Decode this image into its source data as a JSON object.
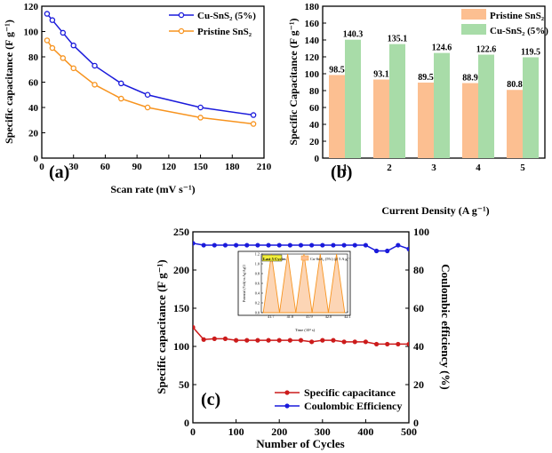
{
  "chart_data": [
    {
      "type": "line",
      "panel_label": "(a)",
      "xlabel": "Scan rate (mV s⁻¹)",
      "ylabel": "Specific capacitance (F g⁻¹)",
      "xlim": [
        0,
        210
      ],
      "ylim": [
        0,
        120
      ],
      "xticks": [
        0,
        30,
        60,
        90,
        120,
        150,
        180,
        210
      ],
      "yticks": [
        0,
        20,
        40,
        60,
        80,
        100,
        120
      ],
      "legend_position": "top-right",
      "series": [
        {
          "name": "Cu-SnS₂ (5%)",
          "color": "#1a1adb",
          "marker": "hollow-circle",
          "x": [
            5,
            10,
            20,
            30,
            50,
            75,
            100,
            150,
            200
          ],
          "y": [
            114,
            109,
            99,
            89,
            73,
            59,
            50,
            40,
            34
          ]
        },
        {
          "name": "Pristine SnS₂",
          "color": "#f7931e",
          "marker": "hollow-circle",
          "x": [
            5,
            10,
            20,
            30,
            50,
            75,
            100,
            150,
            200
          ],
          "y": [
            93,
            87,
            79,
            71,
            58,
            47,
            40,
            32,
            27
          ]
        }
      ]
    },
    {
      "type": "bar",
      "panel_label": "(b)",
      "xlabel": "Current Density (A g⁻¹)",
      "ylabel": "Specific Capacitance (F g⁻¹)",
      "categories": [
        "1",
        "2",
        "3",
        "4",
        "5"
      ],
      "ylim": [
        0,
        180
      ],
      "yticks": [
        0,
        20,
        40,
        60,
        80,
        100,
        120,
        140,
        160,
        180
      ],
      "legend_position": "top-right",
      "series": [
        {
          "name": "Pristine SnS₂",
          "color": "#fcbf91",
          "values": [
            98.5,
            93.1,
            89.5,
            88.9,
            80.8
          ],
          "labels": [
            "98.5",
            "93.1",
            "89.5",
            "88.9",
            "80.8"
          ]
        },
        {
          "name": "Cu-SnS₂ (5%)",
          "color": "#a8dca8",
          "values": [
            140.3,
            135.1,
            124.6,
            122.6,
            119.5
          ],
          "labels": [
            "140.3",
            "135.1",
            "124.6",
            "122.6",
            "119.5"
          ]
        }
      ]
    },
    {
      "type": "line",
      "panel_label": "(c)",
      "xlabel": "Number of Cycles",
      "ylabel": "Specific capacitance (F g⁻¹)",
      "y2label": "Coulombic efficiency (%)",
      "xlim": [
        0,
        500
      ],
      "ylim": [
        0,
        250
      ],
      "y2lim": [
        0,
        100
      ],
      "xticks": [
        0,
        100,
        200,
        300,
        400,
        500
      ],
      "yticks": [
        0,
        50,
        100,
        150,
        200,
        250
      ],
      "y2ticks": [
        0,
        20,
        40,
        60,
        80,
        100
      ],
      "legend_position": "bottom-right",
      "series": [
        {
          "name": "Specific capacitance",
          "color": "#cc1b1b",
          "axis": "left",
          "x": [
            0,
            25,
            50,
            75,
            100,
            125,
            150,
            175,
            200,
            225,
            250,
            275,
            300,
            325,
            350,
            375,
            400,
            425,
            450,
            475,
            500
          ],
          "y": [
            125,
            109,
            110,
            110,
            108,
            108,
            108,
            108,
            108,
            108,
            108,
            106,
            108,
            108,
            106,
            106,
            106,
            103,
            103,
            103,
            103
          ]
        },
        {
          "name": "Coulombic Efficiency",
          "color": "#1a1adb",
          "axis": "right",
          "x": [
            0,
            25,
            50,
            75,
            100,
            125,
            150,
            175,
            200,
            225,
            250,
            275,
            300,
            325,
            350,
            375,
            400,
            425,
            450,
            475,
            500
          ],
          "y": [
            94,
            93,
            93,
            93,
            93,
            93,
            93,
            93,
            93,
            93,
            93,
            93,
            93,
            93,
            93,
            93,
            93,
            90,
            90,
            93,
            91
          ]
        }
      ],
      "inset": {
        "legend_box": "Last 5 Cycles",
        "legend_entry": "Cu-SnS₂ (5%) @ 5 A g⁻¹",
        "xlabel": "Time (10³ s)",
        "ylabel": "Potential (Volt) vs Ag/AgCl",
        "xlim": [
          41.65,
          42.1
        ],
        "ylim": [
          0.0,
          1.2
        ],
        "xticks": [
          "41.7",
          "41.8",
          "41.9",
          "42.0",
          "42.1"
        ],
        "yticks": [
          "0.0",
          "0.2",
          "0.4",
          "0.6",
          "0.8",
          "1.0",
          "1.2"
        ],
        "cycle_starts": [
          41.66,
          41.745,
          41.83,
          41.915,
          42.0
        ],
        "cycle_width": 0.085,
        "peak_fraction": 0.5,
        "color": "#f7931e"
      }
    }
  ]
}
